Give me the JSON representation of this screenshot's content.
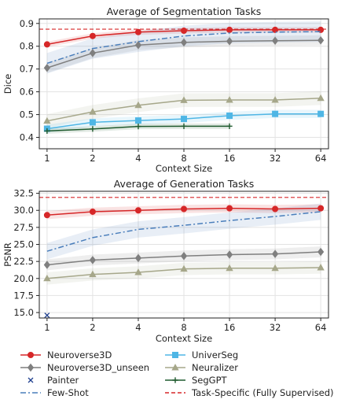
{
  "chart_data": [
    {
      "type": "line",
      "title": "Average of Segmentation Tasks",
      "xlabel": "Context Size",
      "ylabel": "Dice",
      "x": [
        1,
        2,
        4,
        8,
        16,
        32,
        64
      ],
      "x_scale": "log2",
      "ylim": [
        0.35,
        0.92
      ],
      "yticks": [
        0.4,
        0.5,
        0.6,
        0.7,
        0.8,
        0.9
      ],
      "grid": true,
      "reference_line": {
        "name": "Task-Specific (Fully Supervised)",
        "value": 0.875,
        "color": "#d62728"
      },
      "series": [
        {
          "name": "Neuroverse3D",
          "color": "#d62728",
          "marker": "circle",
          "dash": "solid",
          "values": [
            0.808,
            0.845,
            0.862,
            0.868,
            0.872,
            0.872,
            0.872
          ],
          "band": 0.012
        },
        {
          "name": "Neuroverse3D_unseen",
          "color": "#7f7f7f",
          "marker": "diamond",
          "dash": "solid",
          "values": [
            0.705,
            0.77,
            0.805,
            0.817,
            0.822,
            0.824,
            0.826
          ],
          "band": 0.022
        },
        {
          "name": "Few-Shot",
          "color": "#4a7ebb",
          "marker": "none",
          "dash": "dashdot",
          "values": [
            0.725,
            0.79,
            0.82,
            0.845,
            0.858,
            0.862,
            0.864
          ],
          "band": 0.045
        },
        {
          "name": "Neuralizer",
          "color": "#a6a78a",
          "marker": "triangle",
          "dash": "solid",
          "values": [
            0.472,
            0.512,
            0.541,
            0.563,
            0.564,
            0.564,
            0.572
          ],
          "band": 0.03
        },
        {
          "name": "UniverSeg",
          "color": "#4fb6e5",
          "marker": "square",
          "dash": "solid",
          "values": [
            0.438,
            0.466,
            0.474,
            0.481,
            0.495,
            0.503,
            0.503
          ],
          "band": 0.018
        },
        {
          "name": "SegGPT",
          "color": "#1f5a2e",
          "marker": "plus",
          "dash": "solid",
          "values": [
            0.428,
            0.437,
            0.448,
            0.449,
            0.449,
            null,
            null
          ],
          "band": 0.012
        }
      ]
    },
    {
      "type": "line",
      "title": "Average of Generation Tasks",
      "xlabel": "Context Size",
      "ylabel": "PSNR",
      "x": [
        1,
        2,
        4,
        8,
        16,
        32,
        64
      ],
      "x_scale": "log2",
      "ylim": [
        14.2,
        32.8
      ],
      "yticks": [
        15.0,
        17.5,
        20.0,
        22.5,
        25.0,
        27.5,
        30.0,
        32.5
      ],
      "grid": true,
      "reference_line": {
        "name": "Task-Specific (Fully Supervised)",
        "value": 31.9,
        "color": "#d62728"
      },
      "series": [
        {
          "name": "Neuroverse3D",
          "color": "#d62728",
          "marker": "circle",
          "dash": "solid",
          "values": [
            29.3,
            29.8,
            30.0,
            30.2,
            30.3,
            30.2,
            30.3
          ],
          "band": 0.6
        },
        {
          "name": "Few-Shot",
          "color": "#4a7ebb",
          "marker": "none",
          "dash": "dashdot",
          "values": [
            24.0,
            26.0,
            27.2,
            27.8,
            28.5,
            29.1,
            29.8
          ],
          "band": 1.2
        },
        {
          "name": "Neuroverse3D_unseen",
          "color": "#7f7f7f",
          "marker": "diamond",
          "dash": "solid",
          "values": [
            22.0,
            22.7,
            23.0,
            23.3,
            23.5,
            23.6,
            23.9
          ],
          "band": 0.8
        },
        {
          "name": "Neuralizer",
          "color": "#a6a78a",
          "marker": "triangle",
          "dash": "solid",
          "values": [
            20.0,
            20.6,
            20.9,
            21.4,
            21.5,
            21.5,
            21.6
          ],
          "band": 0.9
        },
        {
          "name": "Painter",
          "color": "#1f3f8f",
          "marker": "x",
          "dash": "none",
          "values": [
            14.6,
            null,
            null,
            null,
            null,
            null,
            null
          ],
          "band": 0
        }
      ]
    }
  ],
  "legend": {
    "items": [
      {
        "label": "Neuroverse3D",
        "color": "#d62728",
        "marker": "circle",
        "dash": "solid"
      },
      {
        "label": "UniverSeg",
        "color": "#4fb6e5",
        "marker": "square",
        "dash": "solid"
      },
      {
        "label": "Neuroverse3D_unseen",
        "color": "#7f7f7f",
        "marker": "diamond",
        "dash": "solid"
      },
      {
        "label": "Neuralizer",
        "color": "#a6a78a",
        "marker": "triangle",
        "dash": "solid"
      },
      {
        "label": "Painter",
        "color": "#1f3f8f",
        "marker": "x",
        "dash": "none"
      },
      {
        "label": "SegGPT",
        "color": "#1f5a2e",
        "marker": "plus",
        "dash": "solid"
      },
      {
        "label": "Few-Shot",
        "color": "#4a7ebb",
        "marker": "none",
        "dash": "dashdot"
      },
      {
        "label": "Task-Specific (Fully Supervised)",
        "color": "#d62728",
        "marker": "none",
        "dash": "dashed"
      }
    ]
  }
}
